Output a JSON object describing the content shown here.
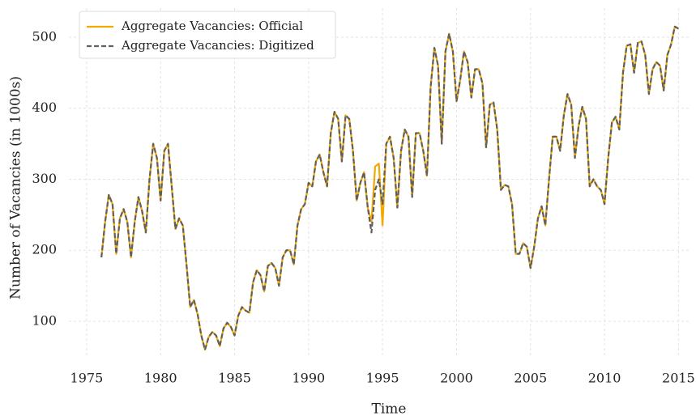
{
  "chart_data": {
    "type": "line",
    "xlabel": "Time",
    "ylabel": "Number of Vacancies (in 1000s)",
    "xlim": [
      1973.8,
      2015.8
    ],
    "ylim": [
      51,
      541
    ],
    "xticks": [
      1975,
      1980,
      1985,
      1990,
      1995,
      2000,
      2005,
      2010,
      2015
    ],
    "yticks": [
      100,
      200,
      300,
      400,
      500
    ],
    "grid": true,
    "legend": "upper left",
    "x": [
      1976,
      1976.25,
      1976.5,
      1976.75,
      1977,
      1977.25,
      1977.5,
      1977.75,
      1978,
      1978.25,
      1978.5,
      1978.75,
      1979,
      1979.25,
      1979.5,
      1979.75,
      1980,
      1980.25,
      1980.5,
      1980.75,
      1981,
      1981.25,
      1981.5,
      1981.75,
      1982,
      1982.25,
      1982.5,
      1982.75,
      1983,
      1983.25,
      1983.5,
      1983.75,
      1984,
      1984.25,
      1984.5,
      1984.75,
      1985,
      1985.25,
      1985.5,
      1985.75,
      1986,
      1986.25,
      1986.5,
      1986.75,
      1987,
      1987.25,
      1987.5,
      1987.75,
      1988,
      1988.25,
      1988.5,
      1988.75,
      1989,
      1989.25,
      1989.5,
      1989.75,
      1990,
      1990.25,
      1990.5,
      1990.75,
      1991,
      1991.25,
      1991.5,
      1991.75,
      1992,
      1992.25,
      1992.5,
      1992.75,
      1993,
      1993.25,
      1993.5,
      1993.75,
      1994,
      1994.25,
      1994.5,
      1994.75,
      1995,
      1995.25,
      1995.5,
      1995.75,
      1996,
      1996.25,
      1996.5,
      1996.75,
      1997,
      1997.25,
      1997.5,
      1997.75,
      1998,
      1998.25,
      1998.5,
      1998.75,
      1999,
      1999.25,
      1999.5,
      1999.75,
      2000,
      2000.25,
      2000.5,
      2000.75,
      2001,
      2001.25,
      2001.5,
      2001.75,
      2002,
      2002.25,
      2002.5,
      2002.75,
      2003,
      2003.25,
      2003.5,
      2003.75,
      2004,
      2004.25,
      2004.5,
      2004.75,
      2005,
      2005.25,
      2005.5,
      2005.75,
      2006,
      2006.25,
      2006.5,
      2006.75,
      2007,
      2007.25,
      2007.5,
      2007.75,
      2008,
      2008.25,
      2008.5,
      2008.75,
      2009,
      2009.25,
      2009.5,
      2009.75,
      2010,
      2010.25,
      2010.5,
      2010.75,
      2011,
      2011.25,
      2011.5,
      2011.75,
      2012,
      2012.25,
      2012.5,
      2012.75,
      2013,
      2013.25,
      2013.5,
      2013.75,
      2014,
      2014.25,
      2014.5,
      2014.75,
      2015
    ],
    "series": [
      {
        "name": "Aggregate Vacancies: Official",
        "color": "#f2a900",
        "dashed": false,
        "values": [
          190,
          240,
          278,
          265,
          195,
          245,
          258,
          240,
          190,
          240,
          275,
          255,
          225,
          300,
          350,
          330,
          270,
          340,
          350,
          290,
          230,
          245,
          235,
          180,
          120,
          130,
          110,
          80,
          60,
          78,
          85,
          80,
          65,
          90,
          98,
          92,
          80,
          108,
          120,
          115,
          112,
          155,
          172,
          165,
          142,
          178,
          182,
          175,
          150,
          190,
          200,
          200,
          180,
          235,
          258,
          265,
          295,
          290,
          325,
          335,
          310,
          290,
          365,
          395,
          385,
          325,
          390,
          385,
          340,
          270,
          295,
          310,
          260,
          240,
          318,
          322,
          235,
          350,
          360,
          330,
          260,
          340,
          370,
          360,
          275,
          365,
          365,
          340,
          305,
          430,
          485,
          460,
          350,
          480,
          505,
          480,
          410,
          440,
          480,
          465,
          415,
          455,
          455,
          435,
          345,
          405,
          408,
          370,
          285,
          292,
          290,
          265,
          195,
          195,
          210,
          205,
          175,
          205,
          245,
          262,
          235,
          300,
          360,
          360,
          340,
          390,
          420,
          405,
          330,
          375,
          402,
          385,
          290,
          300,
          290,
          285,
          265,
          330,
          380,
          388,
          370,
          450,
          488,
          490,
          450,
          492,
          494,
          475,
          420,
          455,
          465,
          460,
          425,
          475,
          490,
          515,
          512
        ]
      },
      {
        "name": "Aggregate Vacancies: Digitized",
        "color": "#606060",
        "dashed": true,
        "values": [
          190,
          240,
          278,
          265,
          195,
          245,
          258,
          240,
          190,
          240,
          275,
          255,
          225,
          300,
          350,
          330,
          270,
          340,
          350,
          290,
          230,
          245,
          235,
          180,
          120,
          130,
          110,
          80,
          60,
          78,
          85,
          80,
          65,
          90,
          98,
          92,
          80,
          108,
          120,
          115,
          112,
          155,
          172,
          165,
          142,
          178,
          182,
          175,
          150,
          190,
          200,
          200,
          180,
          235,
          258,
          265,
          295,
          290,
          325,
          335,
          310,
          290,
          365,
          395,
          385,
          325,
          390,
          385,
          340,
          270,
          295,
          310,
          260,
          225,
          285,
          300,
          265,
          350,
          360,
          330,
          260,
          340,
          370,
          360,
          275,
          365,
          365,
          340,
          305,
          430,
          485,
          460,
          350,
          480,
          505,
          480,
          410,
          440,
          480,
          465,
          415,
          455,
          455,
          435,
          345,
          405,
          408,
          370,
          285,
          292,
          290,
          265,
          195,
          195,
          210,
          205,
          175,
          205,
          245,
          262,
          235,
          300,
          360,
          360,
          340,
          390,
          420,
          405,
          330,
          375,
          402,
          385,
          290,
          300,
          290,
          285,
          265,
          330,
          380,
          388,
          370,
          450,
          488,
          490,
          450,
          492,
          494,
          475,
          420,
          455,
          465,
          460,
          425,
          475,
          490,
          515,
          512
        ]
      }
    ]
  }
}
